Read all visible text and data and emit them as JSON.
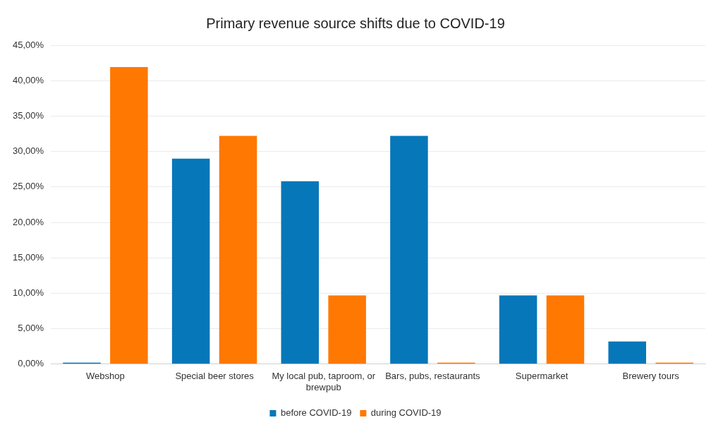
{
  "chart_data": {
    "type": "bar",
    "title": "Primary revenue source shifts due to COVID-19",
    "categories": [
      "Webshop",
      "Special beer stores",
      "My local pub, taproom, or brewpub",
      "Bars, pubs, restaurants",
      "Supermarket",
      "Brewery tours"
    ],
    "series": [
      {
        "name": "before COVID-19",
        "color": "#0677b9",
        "values": [
          0.2,
          29.0,
          25.8,
          32.2,
          9.7,
          3.2
        ]
      },
      {
        "name": "during COVID-19",
        "color": "#ff7801",
        "values": [
          41.9,
          32.2,
          9.7,
          0.2,
          9.7,
          0.2
        ]
      }
    ],
    "ylim": [
      0,
      45
    ],
    "yticks": [
      {
        "value": 0,
        "label": "0,00%"
      },
      {
        "value": 5,
        "label": "5,00%"
      },
      {
        "value": 10,
        "label": "10,00%"
      },
      {
        "value": 15,
        "label": "15,00%"
      },
      {
        "value": 20,
        "label": "20,00%"
      },
      {
        "value": 25,
        "label": "25,00%"
      },
      {
        "value": 30,
        "label": "30,00%"
      },
      {
        "value": 35,
        "label": "35,00%"
      },
      {
        "value": 40,
        "label": "40,00%"
      },
      {
        "value": 45,
        "label": "45,00%"
      }
    ],
    "grid": "y",
    "legend": "bottom"
  }
}
